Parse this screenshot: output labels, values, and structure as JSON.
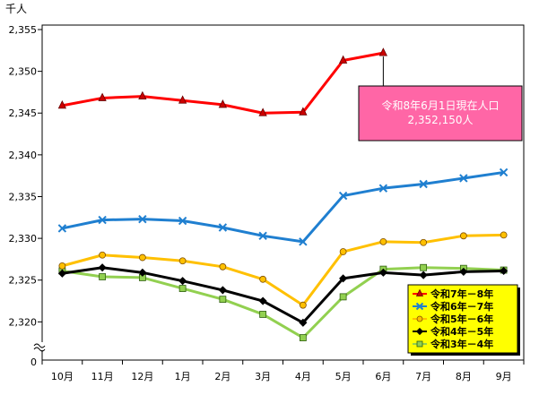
{
  "chart_data": {
    "type": "line",
    "y_unit": "千人",
    "categories": [
      "10月",
      "11月",
      "12月",
      "1月",
      "2月",
      "3月",
      "4月",
      "5月",
      "6月",
      "7月",
      "8月",
      "9月"
    ],
    "ylim": [
      2318,
      2355
    ],
    "yticks": [
      2320,
      2325,
      2330,
      2335,
      2340,
      2345,
      2350,
      2355
    ],
    "y_zero_label": "0",
    "grid": false,
    "legend_position": "bottom-right",
    "annotation": {
      "line1": "令和8年6月1日現在人口",
      "line2": "2,352,150人",
      "points_to": {
        "series": 0,
        "category": "6月"
      }
    },
    "series": [
      {
        "name": "令和7年－8年",
        "color": "#ff0000",
        "marker": "triangle",
        "marker_fill": "#cc0000",
        "values": [
          2345.9,
          2346.8,
          2347.0,
          2346.5,
          2346.0,
          2345.0,
          2345.1,
          2351.3,
          2352.2,
          null,
          null,
          null
        ]
      },
      {
        "name": "令和6年－7年",
        "color": "#1f7fd0",
        "marker": "x",
        "marker_fill": "#1f7fd0",
        "values": [
          2331.2,
          2332.2,
          2332.3,
          2332.1,
          2331.3,
          2330.3,
          2329.6,
          2335.1,
          2336.0,
          2336.5,
          2337.2,
          2337.9
        ]
      },
      {
        "name": "令和5年－6年",
        "color": "#ffc000",
        "marker": "circle",
        "marker_fill": "#ffc000",
        "values": [
          2326.7,
          2328.0,
          2327.7,
          2327.3,
          2326.6,
          2325.1,
          2322.0,
          2328.4,
          2329.6,
          2329.5,
          2330.3,
          2330.4
        ]
      },
      {
        "name": "令和4年－5年",
        "color": "#000000",
        "marker": "diamond",
        "marker_fill": "#000000",
        "values": [
          2325.8,
          2326.5,
          2325.9,
          2324.9,
          2323.8,
          2322.5,
          2319.9,
          2325.2,
          2325.9,
          2325.6,
          2326.0,
          2326.1
        ]
      },
      {
        "name": "令和3年－4年",
        "color": "#92d050",
        "marker": "square",
        "marker_fill": "#92d050",
        "values": [
          2326.1,
          2325.4,
          2325.3,
          2324.0,
          2322.7,
          2320.9,
          2318.1,
          2323.0,
          2326.3,
          2326.5,
          2326.4,
          2326.2
        ]
      }
    ]
  }
}
